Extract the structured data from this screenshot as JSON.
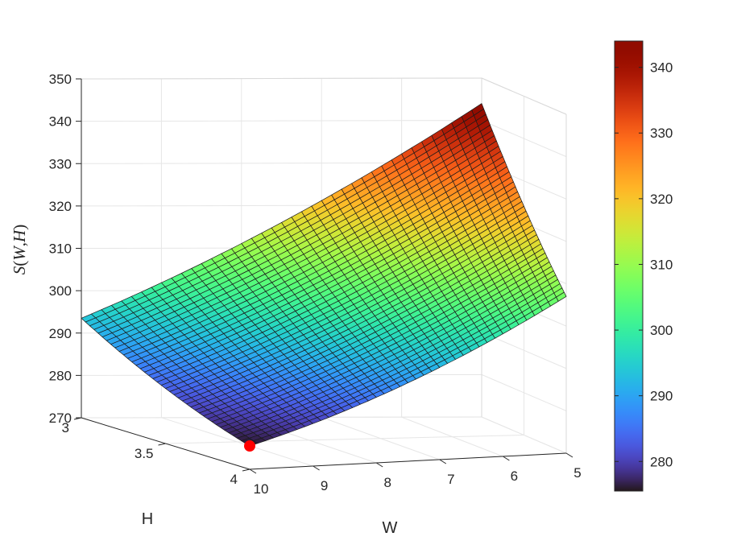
{
  "chart_data": {
    "type": "surface",
    "title": "",
    "xlabel": "W",
    "ylabel": "H",
    "zlabel": "S(W,H)",
    "x_range": [
      5,
      10
    ],
    "y_range": [
      3,
      4
    ],
    "z_range": [
      270,
      350
    ],
    "x_ticks": [
      10,
      9,
      8,
      7,
      6,
      5
    ],
    "y_ticks": [
      "3",
      "3.5",
      "4"
    ],
    "z_ticks": [
      270,
      280,
      290,
      300,
      310,
      320,
      330,
      340,
      350
    ],
    "corner_values": [
      {
        "W": 10,
        "H": 3,
        "S": 293.5
      },
      {
        "W": 5,
        "H": 3,
        "S": 344
      },
      {
        "W": 5,
        "H": 4,
        "S": 307
      },
      {
        "W": 10,
        "H": 4,
        "S": 275.5
      }
    ],
    "marker": {
      "W": 10,
      "H": 4,
      "S": 275.5,
      "color": "#ff0000"
    },
    "colormap": "turbo",
    "colorbar": {
      "min": 275.5,
      "max": 344,
      "ticks": [
        280,
        290,
        300,
        310,
        320,
        330,
        340
      ]
    },
    "grid": true,
    "mesh_lines": 40
  }
}
